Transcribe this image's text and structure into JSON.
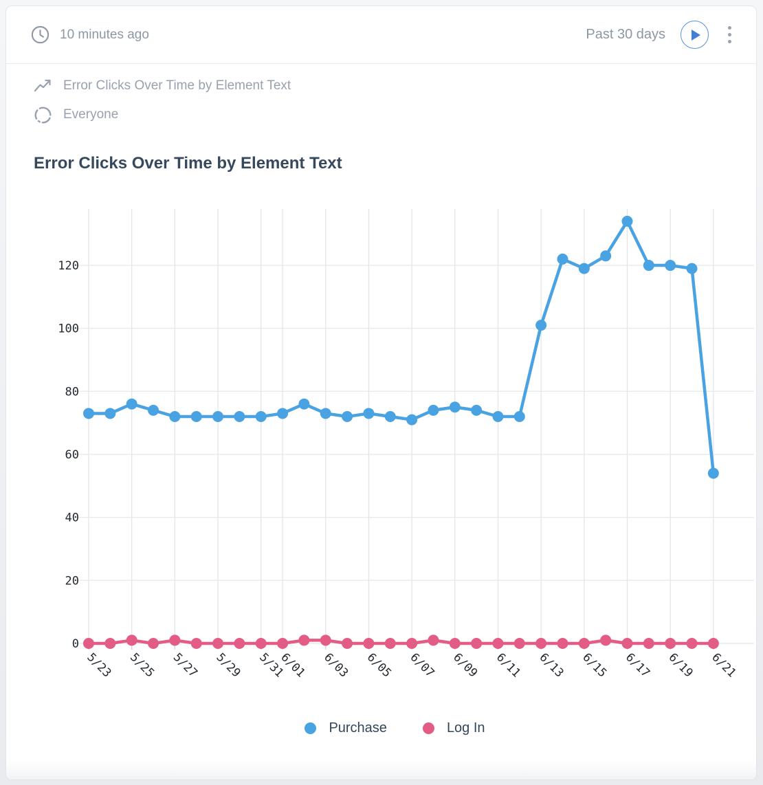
{
  "header": {
    "last_updated": "10 minutes ago",
    "date_range": "Past 30 days"
  },
  "icons": {
    "clock": "clock-icon",
    "trend": "trend-line-icon",
    "segment": "segment-ring-icon",
    "play": "play-icon",
    "menu": "kebab-menu-icon"
  },
  "meta": {
    "chart_name": "Error Clicks Over Time by Element Text",
    "segment": "Everyone"
  },
  "title": "Error Clicks Over Time by Element Text",
  "colors": {
    "purchase_blue": "#49a2e2",
    "login_pink": "#e25c85",
    "title_dark": "#36495c",
    "ui_gray": "#8d97a4",
    "grid_vertical": "#e4e7ea",
    "grid_horizontal": "#e8eaec",
    "axis_label": "#242a31",
    "play_blue": "#4180d6"
  },
  "chart_data": {
    "type": "line",
    "title": "Error Clicks Over Time by Element Text",
    "x": [
      "5/23",
      "5/24",
      "5/25",
      "5/26",
      "5/27",
      "5/28",
      "5/29",
      "5/30",
      "5/31",
      "6/01",
      "6/02",
      "6/03",
      "6/04",
      "6/05",
      "6/06",
      "6/07",
      "6/08",
      "6/09",
      "6/10",
      "6/11",
      "6/12",
      "6/13",
      "6/14",
      "6/15",
      "6/16",
      "6/17",
      "6/18",
      "6/19",
      "6/20",
      "6/21"
    ],
    "x_tick_labels": [
      "5/23",
      "5/25",
      "5/27",
      "5/29",
      "5/31",
      "6/01",
      "6/03",
      "6/05",
      "6/07",
      "6/09",
      "6/11",
      "6/13",
      "6/15",
      "6/17",
      "6/19",
      "6/21"
    ],
    "series": [
      {
        "name": "Purchase",
        "color": "#49a2e2",
        "values": [
          73,
          73,
          76,
          74,
          72,
          72,
          72,
          72,
          72,
          73,
          76,
          73,
          72,
          73,
          72,
          71,
          74,
          75,
          74,
          72,
          72,
          101,
          122,
          119,
          123,
          134,
          120,
          120,
          119,
          54
        ]
      },
      {
        "name": "Log In",
        "color": "#e25c85",
        "values": [
          0,
          0,
          1,
          0,
          1,
          0,
          0,
          0,
          0,
          0,
          1,
          1,
          0,
          0,
          0,
          0,
          1,
          0,
          0,
          0,
          0,
          0,
          0,
          0,
          1,
          0,
          0,
          0,
          0,
          0
        ]
      }
    ],
    "ylim": [
      0,
      140
    ],
    "yticks": [
      0,
      20,
      40,
      60,
      80,
      100,
      120
    ],
    "grid": true,
    "legend_position": "bottom"
  }
}
